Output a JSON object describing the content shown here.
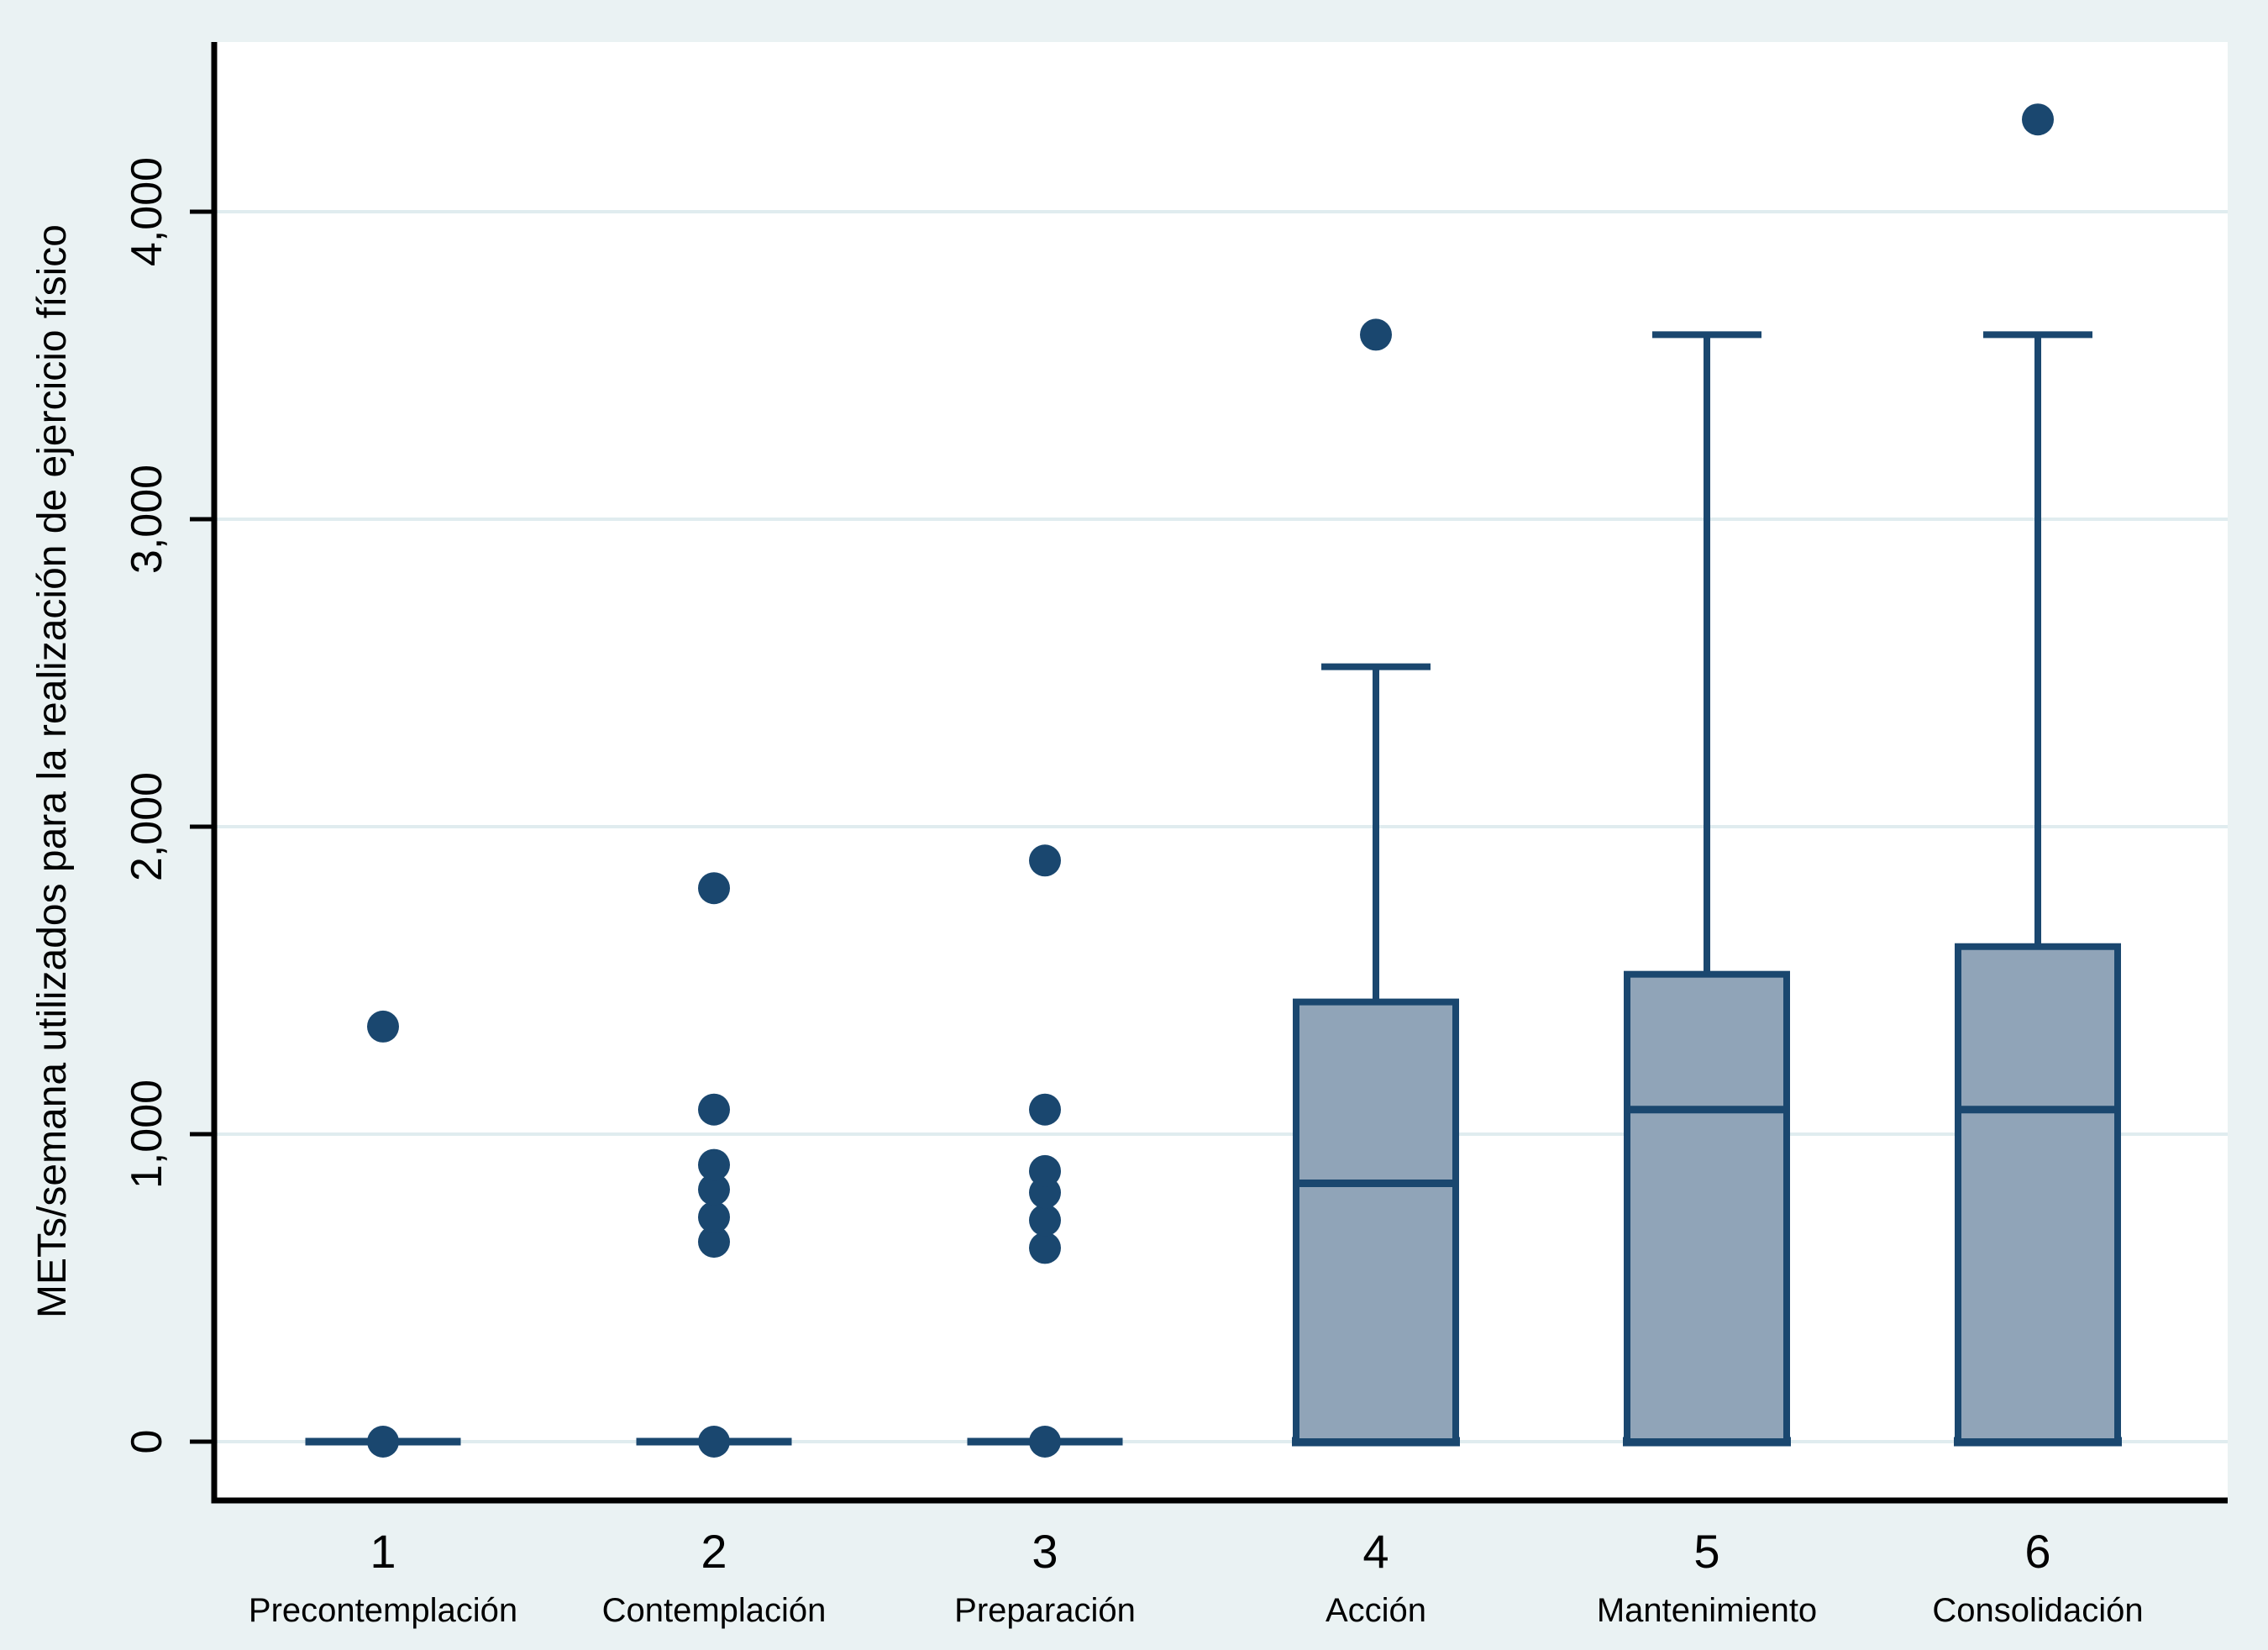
{
  "figure": {
    "background_color": "#eaf2f3",
    "plot_background_color": "#ffffff",
    "grid_color": "#e0ecef",
    "axis_color": "#000000",
    "box_border_color": "#1a476f",
    "box_fill_color": "#90a4b8",
    "marker_color": "#1a476f"
  },
  "chart_data": {
    "type": "box",
    "title": "",
    "xlabel": "",
    "ylabel": "METs/semana utilizados para la realización de ejercicio físico",
    "ylim": [
      0,
      4400
    ],
    "yticks": [
      0,
      1000,
      2000,
      3000,
      4000
    ],
    "ytick_labels": [
      "0",
      "1,000",
      "2,000",
      "3,000",
      "4,000"
    ],
    "grid": true,
    "legend": "none",
    "categories": [
      {
        "number": "1",
        "label": "Precontemplación",
        "q1": 0,
        "median": 0,
        "q3": 0,
        "whisker_low": 0,
        "whisker_high": 0,
        "collapsed": true,
        "outliers": [
          0,
          1350
        ]
      },
      {
        "number": "2",
        "label": "Contemplación",
        "q1": 0,
        "median": 0,
        "q3": 0,
        "whisker_low": 0,
        "whisker_high": 0,
        "collapsed": true,
        "outliers": [
          0,
          650,
          730,
          820,
          900,
          1080,
          1800
        ]
      },
      {
        "number": "3",
        "label": "Preparación",
        "q1": 0,
        "median": 0,
        "q3": 0,
        "whisker_low": 0,
        "whisker_high": 0,
        "collapsed": true,
        "outliers": [
          0,
          630,
          720,
          810,
          880,
          1080,
          1890
        ]
      },
      {
        "number": "4",
        "label": "Acción",
        "q1": 0,
        "median": 840,
        "q3": 1430,
        "whisker_low": 0,
        "whisker_high": 2520,
        "collapsed": false,
        "outliers": [
          3600
        ]
      },
      {
        "number": "5",
        "label": "Mantenimiento",
        "q1": 0,
        "median": 1080,
        "q3": 1520,
        "whisker_low": 0,
        "whisker_high": 3600,
        "collapsed": false,
        "outliers": []
      },
      {
        "number": "6",
        "label": "Consolidación",
        "q1": 0,
        "median": 1080,
        "q3": 1610,
        "whisker_low": 0,
        "whisker_high": 3600,
        "collapsed": false,
        "outliers": [
          4300
        ]
      }
    ]
  }
}
